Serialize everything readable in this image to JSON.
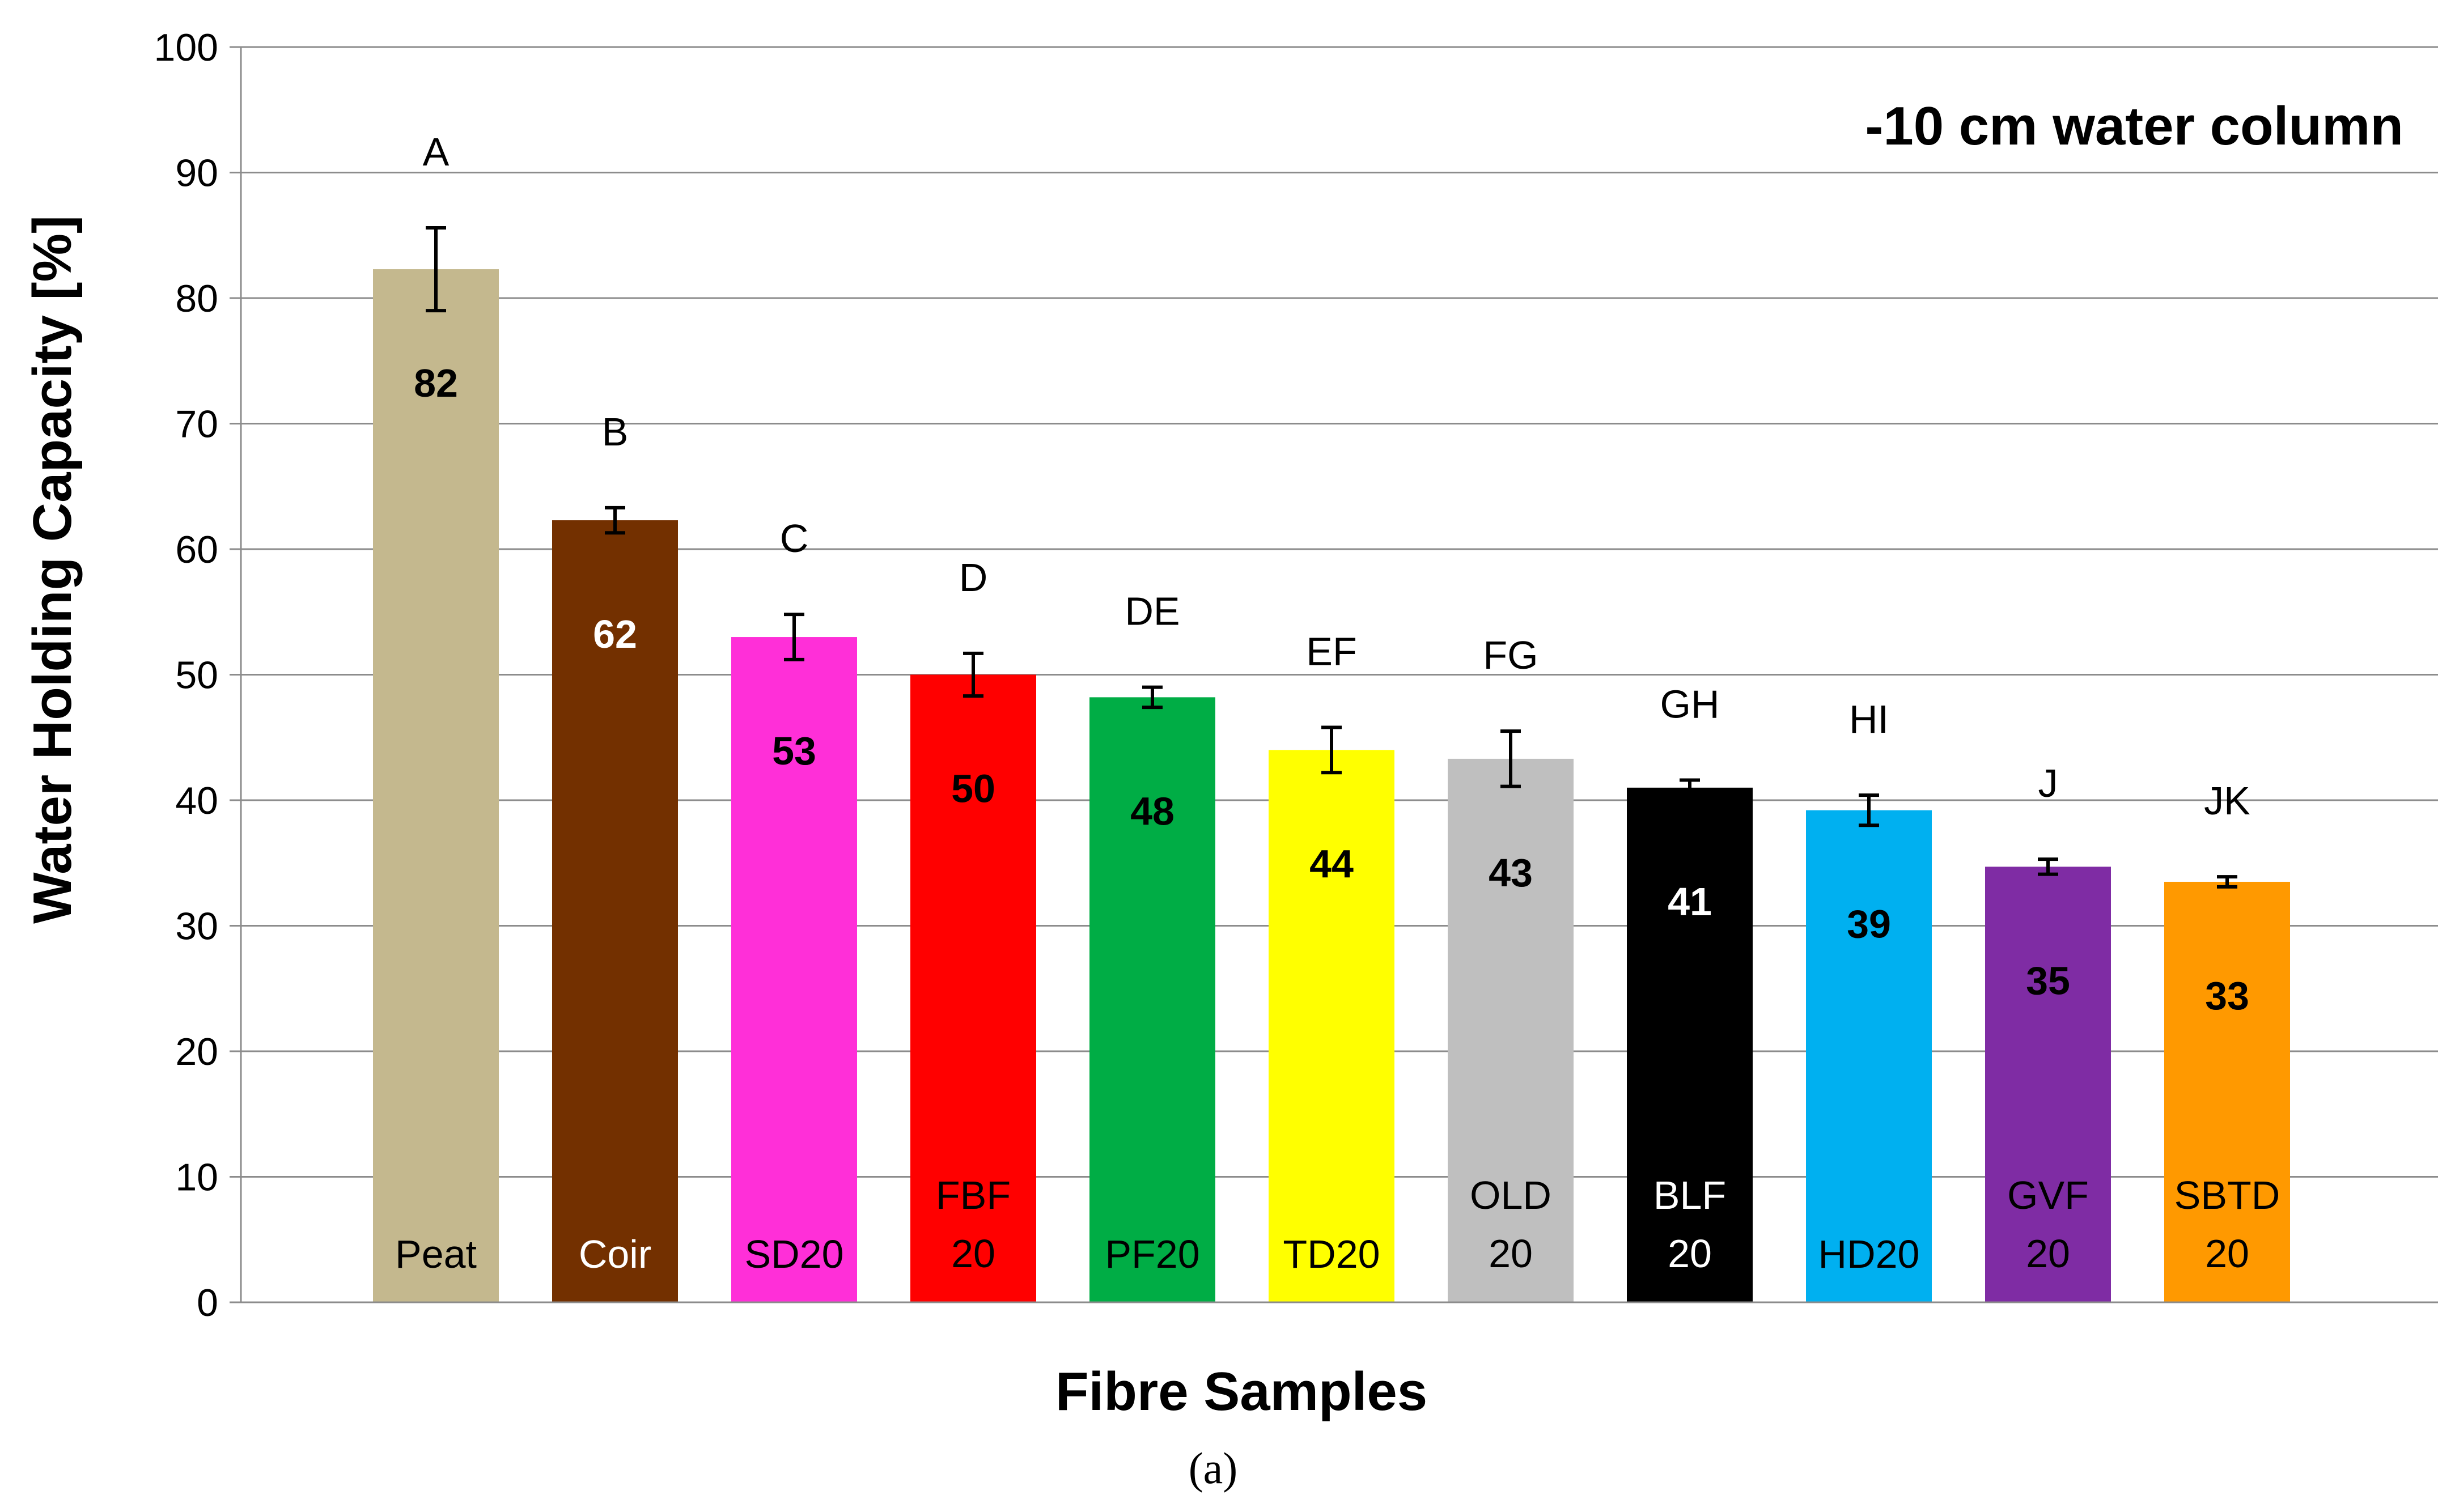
{
  "chart_data": {
    "type": "bar",
    "title": "",
    "annotation": "-10 cm water column",
    "xlabel": "Fibre Samples",
    "ylabel": "Water Holding Capacity [%]",
    "ylim": [
      0,
      100
    ],
    "yticks": [
      0,
      10,
      20,
      30,
      40,
      50,
      60,
      70,
      80,
      90,
      100
    ],
    "grid": true,
    "caption": "(a)",
    "categories": [
      [
        "Peat"
      ],
      [
        "Coir"
      ],
      [
        "SD20"
      ],
      [
        "FBF",
        "20"
      ],
      [
        "PF20"
      ],
      [
        "TD20"
      ],
      [
        "OLD",
        "20"
      ],
      [
        "BLF",
        "20"
      ],
      [
        "HD20"
      ],
      [
        "GVF",
        "20"
      ],
      [
        "SBTD",
        "20"
      ]
    ],
    "values": [
      82.3,
      62.3,
      53.0,
      50.0,
      48.2,
      44.0,
      43.3,
      41.0,
      39.2,
      34.7,
      33.5
    ],
    "value_labels": [
      "82",
      "62",
      "53",
      "50",
      "48",
      "44",
      "43",
      "41",
      "39",
      "35",
      "33"
    ],
    "errors": [
      3.3,
      1.0,
      1.8,
      1.7,
      0.8,
      1.8,
      2.2,
      0.6,
      1.2,
      0.6,
      0.4
    ],
    "group_letters": [
      "A",
      "B",
      "C",
      "D",
      "DE",
      "EF",
      "FG",
      "GH",
      "HI",
      "J",
      "JK"
    ],
    "colors": [
      "#c4b88e",
      "#733000",
      "#ff2fd8",
      "#ff0000",
      "#00ad45",
      "#ffff00",
      "#bfbfbf",
      "#000000",
      "#00b0f0",
      "#7f2ca4",
      "#ff9900"
    ],
    "label_colors": [
      "#000000",
      "#ffffff",
      "#000000",
      "#000000",
      "#000000",
      "#000000",
      "#000000",
      "#ffffff",
      "#000000",
      "#000000",
      "#000000"
    ],
    "category_label_colors": [
      "#000000",
      "#ffffff",
      "#000000",
      "#000000",
      "#000000",
      "#000000",
      "#000000",
      "#ffffff",
      "#000000",
      "#000000",
      "#000000"
    ]
  }
}
